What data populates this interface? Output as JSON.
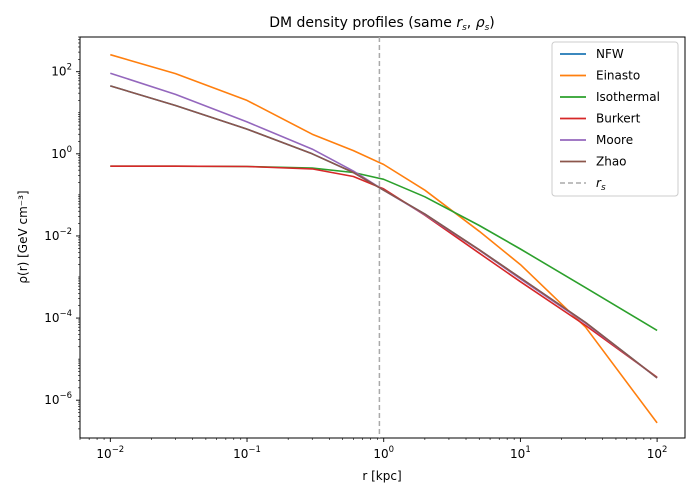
{
  "chart_data": {
    "type": "line",
    "title": "DM density profiles (same r_s, ρ_s)",
    "xlabel": "r [kpc]",
    "ylabel": "ρ(r) [GeV cm⁻³]",
    "x_scale": "log",
    "y_scale": "log",
    "xlim": [
      0.006,
      160
    ],
    "ylim": [
      1.2e-07,
      700
    ],
    "x_ticks": [
      {
        "base": "10",
        "exp": "−2",
        "value": 0.01
      },
      {
        "base": "10",
        "exp": "−1",
        "value": 0.1
      },
      {
        "base": "10",
        "exp": "0",
        "value": 1
      },
      {
        "base": "10",
        "exp": "1",
        "value": 10
      },
      {
        "base": "10",
        "exp": "2",
        "value": 100
      }
    ],
    "y_ticks": [
      {
        "base": "10",
        "exp": "−6",
        "value": 1e-06
      },
      {
        "base": "10",
        "exp": "−4",
        "value": 0.0001
      },
      {
        "base": "10",
        "exp": "−2",
        "value": 0.01
      },
      {
        "base": "10",
        "exp": "0",
        "value": 1
      },
      {
        "base": "10",
        "exp": "2",
        "value": 100
      }
    ],
    "grid": false,
    "legend_position": "top-right",
    "x": [
      0.01,
      0.03,
      0.1,
      0.3,
      0.6,
      1,
      2,
      5,
      10,
      30,
      100
    ],
    "series": [
      {
        "name": "NFW",
        "color": "#1f77b4",
        "values": [
          45,
          15,
          4.0,
          1.0,
          0.35,
          0.13,
          0.034,
          0.0046,
          0.00095,
          7.8e-05,
          3.5e-06
        ]
      },
      {
        "name": "Einasto",
        "color": "#ff7f0e",
        "values": [
          260,
          90,
          20,
          3.0,
          1.2,
          0.55,
          0.13,
          0.013,
          0.002,
          6e-05,
          2.8e-07
        ]
      },
      {
        "name": "Isothermal",
        "color": "#2ca02c",
        "values": [
          0.5,
          0.5,
          0.49,
          0.45,
          0.35,
          0.24,
          0.09,
          0.018,
          0.0048,
          0.00055,
          5e-05
        ]
      },
      {
        "name": "Burkert",
        "color": "#d62728",
        "values": [
          0.5,
          0.5,
          0.49,
          0.43,
          0.28,
          0.14,
          0.032,
          0.0038,
          0.00077,
          6.6e-05,
          3.6e-06
        ]
      },
      {
        "name": "Moore",
        "color": "#9467bd",
        "values": [
          92,
          28,
          6.0,
          1.3,
          0.38,
          0.13,
          0.033,
          0.0045,
          0.0009,
          7.5e-05,
          3.5e-06
        ]
      },
      {
        "name": "Zhao",
        "color": "#8c564b",
        "values": [
          45,
          15,
          4.0,
          1.0,
          0.35,
          0.13,
          0.034,
          0.0046,
          0.00095,
          7.8e-05,
          3.5e-06
        ]
      }
    ],
    "annotations": [
      {
        "type": "vline",
        "x": 0.93,
        "color": "#aaaaaa",
        "style": "dashed",
        "name": "r_s"
      }
    ]
  }
}
